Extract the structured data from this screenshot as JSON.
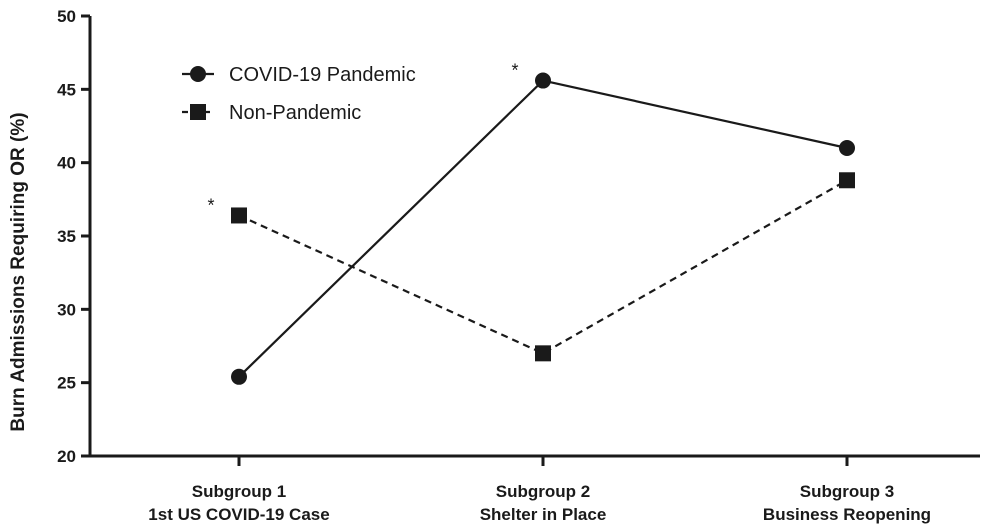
{
  "chart_data": {
    "type": "line",
    "ylabel": "Burn Admissions Requiring OR (%)",
    "ylim": [
      20,
      50
    ],
    "yticks": [
      20,
      25,
      30,
      35,
      40,
      45,
      50
    ],
    "categories": [
      [
        "Subgroup 1",
        "1st US COVID-19 Case"
      ],
      [
        "Subgroup 2",
        "Shelter in Place"
      ],
      [
        "Subgroup 3",
        "Business Reopening"
      ]
    ],
    "legend_position": "top-left",
    "grid": false,
    "series": [
      {
        "name": "COVID-19 Pandemic",
        "marker": "circle",
        "line": "solid",
        "values": [
          25.4,
          45.6,
          41.0
        ]
      },
      {
        "name": "Non-Pandemic",
        "marker": "square",
        "line": "dashed",
        "values": [
          36.4,
          27.0,
          38.8
        ]
      }
    ],
    "annotations": [
      {
        "text": "*",
        "category_index": 0,
        "series_index": 1
      },
      {
        "text": "*",
        "category_index": 1,
        "series_index": 0
      }
    ]
  }
}
